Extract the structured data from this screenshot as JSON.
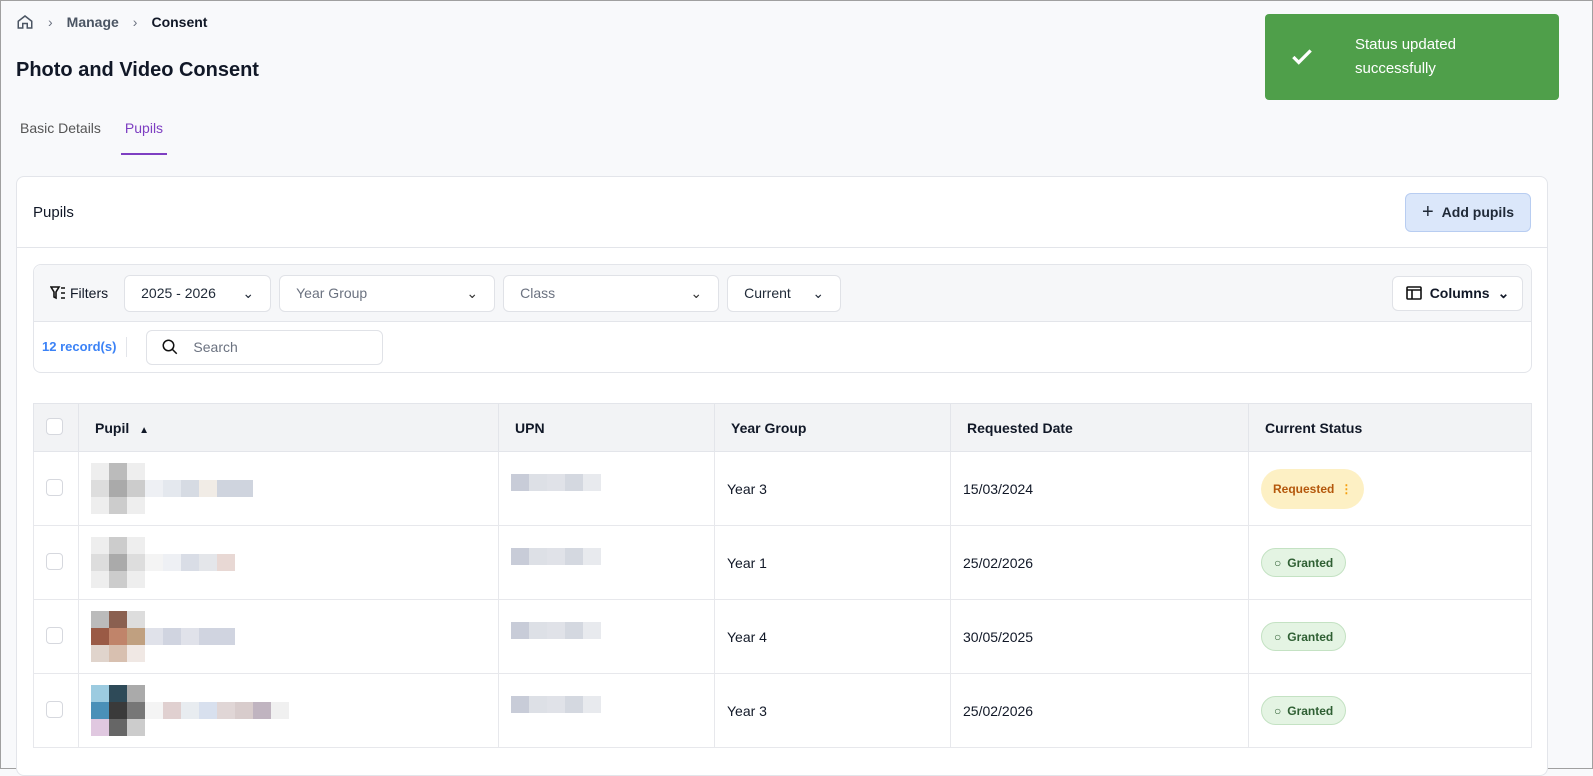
{
  "breadcrumb": {
    "items": [
      "Manage",
      "Consent"
    ]
  },
  "page_title": "Photo and Video Consent",
  "tabs": [
    {
      "label": "Basic Details",
      "active": false
    },
    {
      "label": "Pupils",
      "active": true
    }
  ],
  "toast": {
    "message": "Status updated successfully",
    "color": "#4f9f4a"
  },
  "card": {
    "title": "Pupils",
    "add_button": "Add pupils"
  },
  "filters": {
    "label": "Filters",
    "academic_year": "2025 - 2026",
    "year_group_placeholder": "Year Group",
    "class_placeholder": "Class",
    "status": "Current",
    "columns_button": "Columns"
  },
  "records": "12 record(s)",
  "search": {
    "placeholder": "Search",
    "value": ""
  },
  "table": {
    "headers": [
      "Pupil",
      "UPN",
      "Year Group",
      "Requested Date",
      "Current Status"
    ],
    "rows": [
      {
        "year_group": "Year 3",
        "requested_date": "15/03/2024",
        "status": "Requested"
      },
      {
        "year_group": "Year 1",
        "requested_date": "25/02/2026",
        "status": "Granted"
      },
      {
        "year_group": "Year 4",
        "requested_date": "30/05/2025",
        "status": "Granted"
      },
      {
        "year_group": "Year 3",
        "requested_date": "25/02/2026",
        "status": "Granted"
      }
    ]
  },
  "colors": {
    "accent": "#7e3fc2",
    "link": "#3b82f6",
    "requested_bg": "#fdf0c4",
    "granted_bg": "#e4f4e3"
  }
}
